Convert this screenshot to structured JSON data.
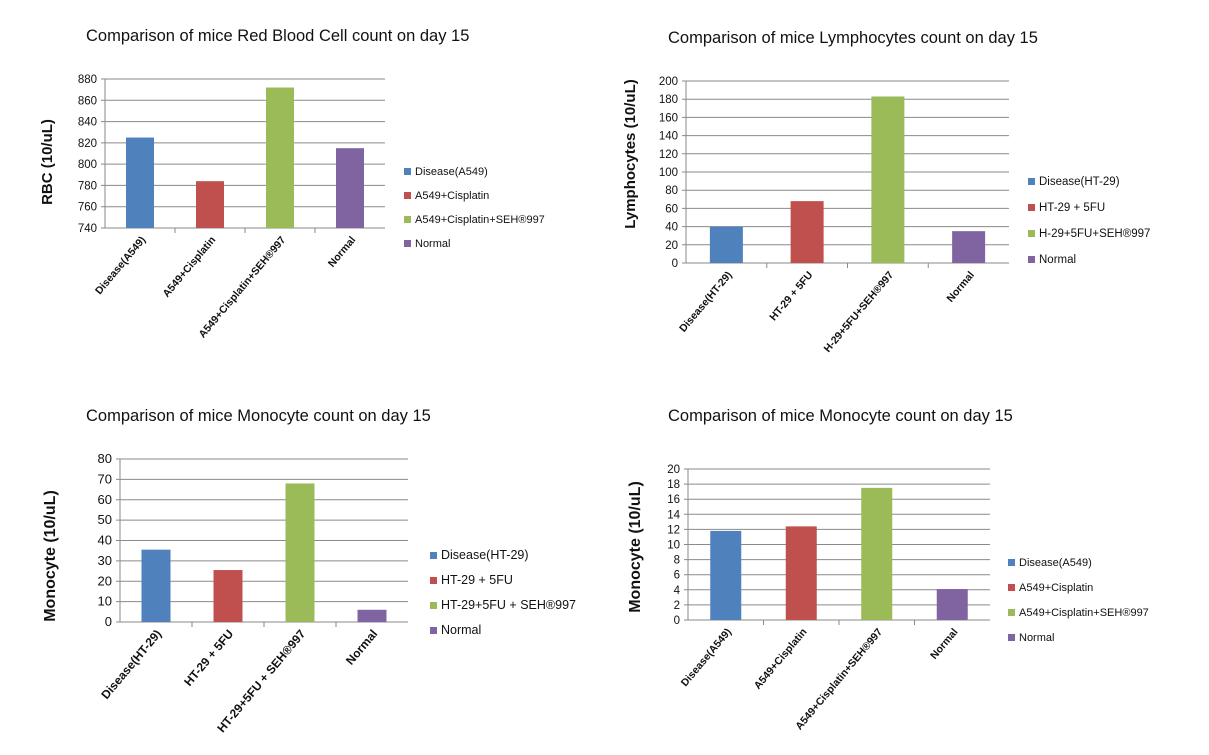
{
  "colors": {
    "blue": "#4f81bd",
    "red": "#c0504d",
    "green": "#9bbb59",
    "purple": "#8064a2",
    "grid": "#8a8a8a"
  },
  "chart_data": [
    {
      "type": "bar",
      "title": "Comparison of mice Red Blood Cell count on day 15",
      "ylabel": "RBC (10/uL)",
      "xlabel": "",
      "categories": [
        "Disease(A549)",
        "A549+Cisplatin",
        "A549+Cisplatin+SEH®997",
        "Normal"
      ],
      "values": [
        825,
        784,
        872,
        815
      ],
      "ylim": [
        740,
        880
      ],
      "yticks": [
        740,
        760,
        780,
        800,
        820,
        840,
        860,
        880
      ],
      "legend": [
        "Disease(A549)",
        "A549+Cisplatin",
        "A549+Cisplatin+SEH®997",
        "Normal"
      ],
      "legend_position": "right",
      "grid": true
    },
    {
      "type": "bar",
      "title": "Comparison of mice Lymphocytes count on day 15",
      "ylabel": "Lymphocytes (10/uL)",
      "xlabel": "",
      "categories": [
        "Disease(HT-29)",
        "HT-29 + 5FU",
        "H-29+5FU+SEH®997",
        "Normal"
      ],
      "values": [
        40,
        68,
        183,
        35
      ],
      "ylim": [
        0,
        200
      ],
      "yticks": [
        0,
        20,
        40,
        60,
        80,
        100,
        120,
        140,
        160,
        180,
        200
      ],
      "legend": [
        "Disease(HT-29)",
        "HT-29 + 5FU",
        "H-29+5FU+SEH®997",
        "Normal"
      ],
      "legend_position": "right",
      "grid": true
    },
    {
      "type": "bar",
      "title": "Comparison of mice Monocyte count on day 15",
      "ylabel": "Monocyte (10/uL)",
      "xlabel": "",
      "categories": [
        "Disease(HT-29)",
        "HT-29 + 5FU",
        "HT-29+5FU + SEH®997",
        "Normal"
      ],
      "values": [
        35.5,
        25.5,
        68,
        6
      ],
      "ylim": [
        0,
        80
      ],
      "yticks": [
        0,
        10,
        20,
        30,
        40,
        50,
        60,
        70,
        80
      ],
      "legend": [
        "Disease(HT-29)",
        "HT-29 + 5FU",
        "HT-29+5FU + SEH®997",
        "Normal"
      ],
      "legend_position": "right",
      "grid": true
    },
    {
      "type": "bar",
      "title": "Comparison of mice Monocyte count on day 15",
      "ylabel": "Monocyte (10/uL)",
      "xlabel": "",
      "categories": [
        "Disease(A549)",
        "A549+Cisplatin",
        "A549+Cisplatin+SEH®997",
        "Normal"
      ],
      "values": [
        11.8,
        12.4,
        17.5,
        4.1
      ],
      "ylim": [
        0,
        20
      ],
      "yticks": [
        0,
        2,
        4,
        6,
        8,
        10,
        12,
        14,
        16,
        18,
        20
      ],
      "legend": [
        "Disease(A549)",
        "A549+Cisplatin",
        "A549+Cisplatin+SEH®997",
        "Normal"
      ],
      "legend_position": "right",
      "grid": true
    }
  ]
}
